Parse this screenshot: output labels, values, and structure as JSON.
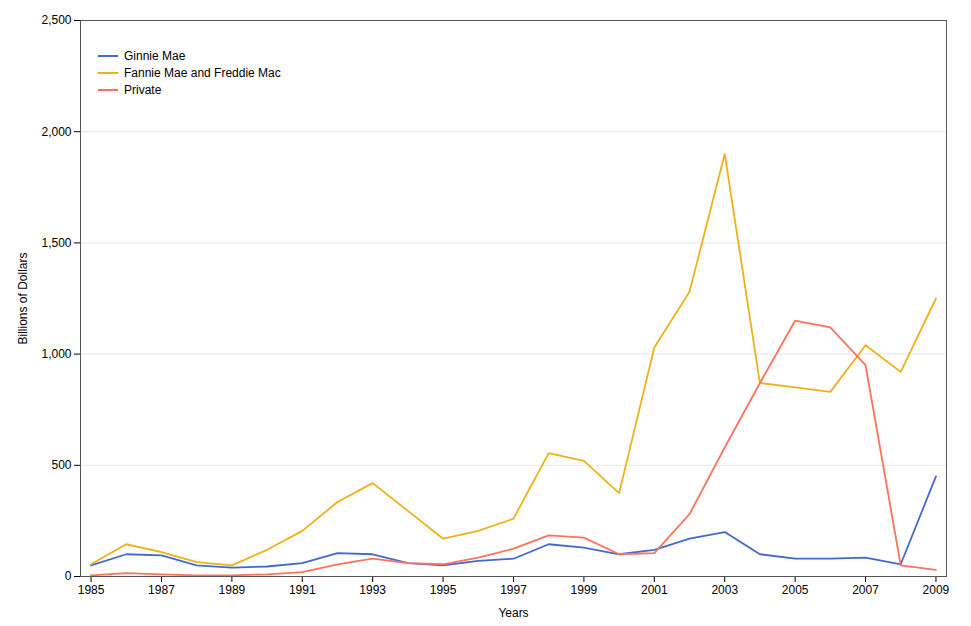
{
  "chart_data": {
    "type": "line",
    "x": [
      1985,
      1986,
      1987,
      1988,
      1989,
      1990,
      1991,
      1992,
      1993,
      1994,
      1995,
      1996,
      1997,
      1998,
      1999,
      2000,
      2001,
      2002,
      2003,
      2004,
      2005,
      2006,
      2007,
      2008,
      2009
    ],
    "series": [
      {
        "name": "Ginnie Mae",
        "values": [
          50,
          100,
          95,
          50,
          40,
          45,
          60,
          105,
          100,
          60,
          50,
          70,
          80,
          145,
          130,
          100,
          120,
          170,
          200,
          100,
          80,
          80,
          85,
          55,
          450
        ]
      },
      {
        "name": "Fannie Mae and Freddie Mac",
        "values": [
          55,
          145,
          110,
          65,
          50,
          120,
          205,
          335,
          420,
          295,
          170,
          205,
          260,
          555,
          520,
          375,
          1030,
          1280,
          1900,
          870,
          850,
          830,
          1040,
          920,
          1250
        ]
      },
      {
        "name": "Private",
        "values": [
          5,
          15,
          10,
          5,
          5,
          10,
          20,
          55,
          80,
          60,
          55,
          85,
          125,
          185,
          175,
          100,
          105,
          280,
          580,
          870,
          1150,
          1120,
          950,
          50,
          30
        ]
      }
    ],
    "xlabel": "Years",
    "ylabel": "Billions of Dollars",
    "xlim": [
      1984.7,
      2009.3
    ],
    "xticks": [
      1985,
      1987,
      1989,
      1991,
      1993,
      1995,
      1997,
      1999,
      2001,
      2003,
      2005,
      2007,
      2009
    ],
    "ylim": [
      0,
      2500
    ],
    "yticks": [
      0,
      500,
      {
        "value": 1000,
        "label": "1,000"
      },
      {
        "value": 1500,
        "label": "1,500"
      },
      {
        "value": 2000,
        "label": "2,000"
      },
      {
        "value": 2500,
        "label": "2,500"
      }
    ],
    "grid": true,
    "legend": "upper left"
  }
}
